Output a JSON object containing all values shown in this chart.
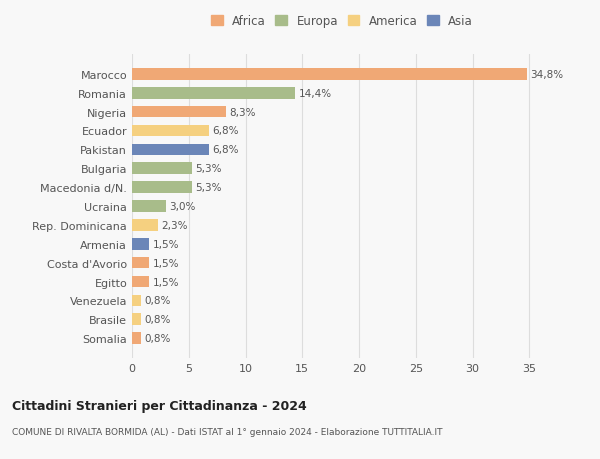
{
  "categories": [
    "Marocco",
    "Romania",
    "Nigeria",
    "Ecuador",
    "Pakistan",
    "Bulgaria",
    "Macedonia d/N.",
    "Ucraina",
    "Rep. Dominicana",
    "Armenia",
    "Costa d'Avorio",
    "Egitto",
    "Venezuela",
    "Brasile",
    "Somalia"
  ],
  "values": [
    34.8,
    14.4,
    8.3,
    6.8,
    6.8,
    5.3,
    5.3,
    3.0,
    2.3,
    1.5,
    1.5,
    1.5,
    0.8,
    0.8,
    0.8
  ],
  "labels": [
    "34,8%",
    "14,4%",
    "8,3%",
    "6,8%",
    "6,8%",
    "5,3%",
    "5,3%",
    "3,0%",
    "2,3%",
    "1,5%",
    "1,5%",
    "1,5%",
    "0,8%",
    "0,8%",
    "0,8%"
  ],
  "colors": [
    "#f0a875",
    "#a8bc8a",
    "#f0a875",
    "#f5d080",
    "#6b86b8",
    "#a8bc8a",
    "#a8bc8a",
    "#a8bc8a",
    "#f5d080",
    "#6b86b8",
    "#f0a875",
    "#f0a875",
    "#f5d080",
    "#f5d080",
    "#f0a875"
  ],
  "legend_labels": [
    "Africa",
    "Europa",
    "America",
    "Asia"
  ],
  "legend_colors": [
    "#f0a875",
    "#a8bc8a",
    "#f5d080",
    "#6b86b8"
  ],
  "title": "Cittadini Stranieri per Cittadinanza - 2024",
  "subtitle": "COMUNE DI RIVALTA BORMIDA (AL) - Dati ISTAT al 1° gennaio 2024 - Elaborazione TUTTITALIA.IT",
  "xlim": [
    0,
    37
  ],
  "xticks": [
    0,
    5,
    10,
    15,
    20,
    25,
    30,
    35
  ],
  "background_color": "#f8f8f8",
  "grid_color": "#dddddd"
}
